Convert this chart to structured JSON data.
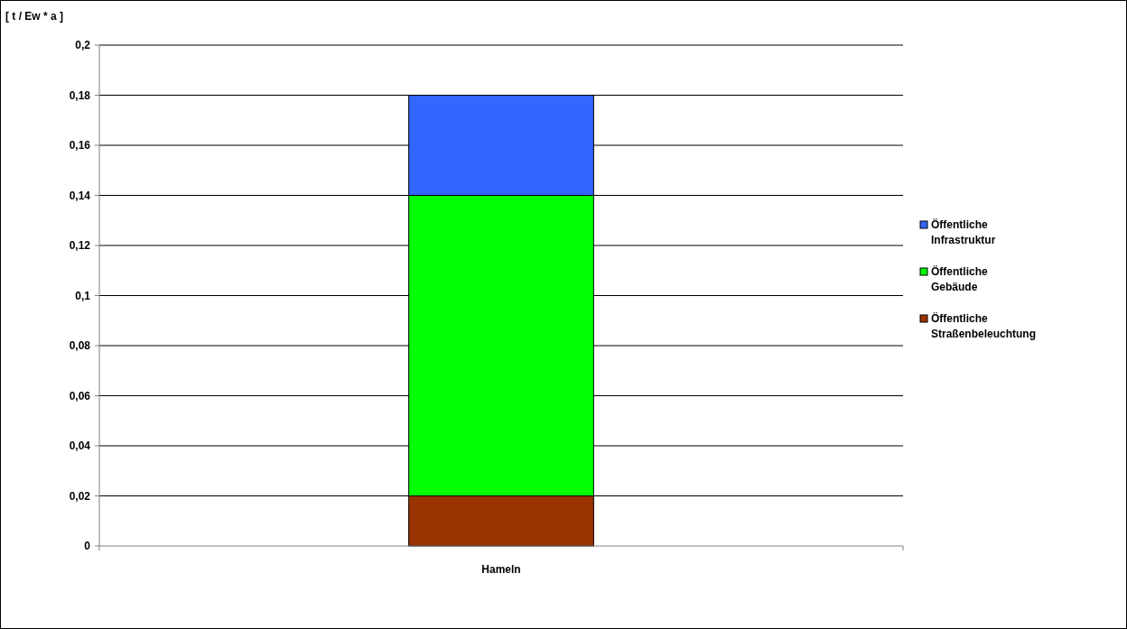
{
  "chart_data": {
    "type": "bar",
    "stacked": true,
    "ylabel": "[ t / Ew * a ]",
    "categories": [
      "Hameln"
    ],
    "series": [
      {
        "name": "Öffentliche Straßenbeleuchtung",
        "color": "#993300",
        "values": [
          0.02
        ]
      },
      {
        "name": "Öffentliche Gebäude",
        "color": "#00ff00",
        "values": [
          0.12
        ]
      },
      {
        "name": "Öffentliche Infrastruktur",
        "color": "#3366ff",
        "values": [
          0.04
        ]
      }
    ],
    "ylim": [
      0,
      0.2
    ],
    "yticks": [
      {
        "value": 0,
        "label": "0"
      },
      {
        "value": 0.02,
        "label": "0,02"
      },
      {
        "value": 0.04,
        "label": "0,04"
      },
      {
        "value": 0.06,
        "label": "0,06"
      },
      {
        "value": 0.08,
        "label": "0,08"
      },
      {
        "value": 0.1,
        "label": "0,1"
      },
      {
        "value": 0.12,
        "label": "0,12"
      },
      {
        "value": 0.14,
        "label": "0,14"
      },
      {
        "value": 0.16,
        "label": "0,16"
      },
      {
        "value": 0.18,
        "label": "0,18"
      },
      {
        "value": 0.2,
        "label": "0,2"
      }
    ],
    "grid": "y",
    "legend": "right"
  }
}
